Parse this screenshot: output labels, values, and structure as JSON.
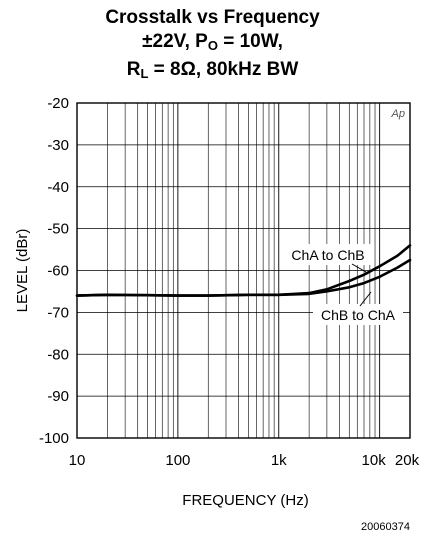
{
  "chart_data": {
    "type": "line",
    "title": {
      "line1": "Crosstalk vs Frequency",
      "line2_pre": "±22V, P",
      "line2_sub": "O",
      "line2_post": " = 10W,",
      "line3_pre": "R",
      "line3_sub": "L",
      "line3_post": " = 8Ω, 80kHz BW"
    },
    "xlabel": "FREQUENCY (Hz)",
    "ylabel": "LEVEL (dBr)",
    "x_scale": "log",
    "xlim": [
      10,
      20000
    ],
    "ylim": [
      -100,
      -20
    ],
    "x_ticks": [
      {
        "value": 10,
        "label": "10"
      },
      {
        "value": 100,
        "label": "100"
      },
      {
        "value": 1000,
        "label": "1k"
      },
      {
        "value": 10000,
        "label": "10k"
      },
      {
        "value": 20000,
        "label": "20k"
      }
    ],
    "y_ticks": [
      {
        "value": -20,
        "label": "-20"
      },
      {
        "value": -30,
        "label": "-30"
      },
      {
        "value": -40,
        "label": "-40"
      },
      {
        "value": -50,
        "label": "-50"
      },
      {
        "value": -60,
        "label": "-60"
      },
      {
        "value": -70,
        "label": "-70"
      },
      {
        "value": -80,
        "label": "-80"
      },
      {
        "value": -90,
        "label": "-90"
      },
      {
        "value": -100,
        "label": "-100"
      }
    ],
    "grid": true,
    "series": [
      {
        "name": "ChA to ChB",
        "x": [
          10,
          20,
          50,
          100,
          200,
          500,
          1000,
          2000,
          3000,
          5000,
          7000,
          10000,
          15000,
          20000
        ],
        "y": [
          -66,
          -65.8,
          -65.9,
          -66,
          -66,
          -65.8,
          -65.8,
          -65.4,
          -64.5,
          -62.5,
          -61,
          -59,
          -56.5,
          -54
        ]
      },
      {
        "name": "ChB to ChA",
        "x": [
          10,
          20,
          50,
          100,
          200,
          500,
          1000,
          2000,
          3000,
          5000,
          7000,
          10000,
          15000,
          20000
        ],
        "y": [
          -66,
          -65.8,
          -65.9,
          -66,
          -66,
          -65.8,
          -65.8,
          -65.6,
          -65,
          -64,
          -63,
          -61.5,
          -59.3,
          -57.5
        ]
      }
    ],
    "annotations": {
      "ap_mark": "Ap",
      "ref_number": "20060374"
    }
  }
}
